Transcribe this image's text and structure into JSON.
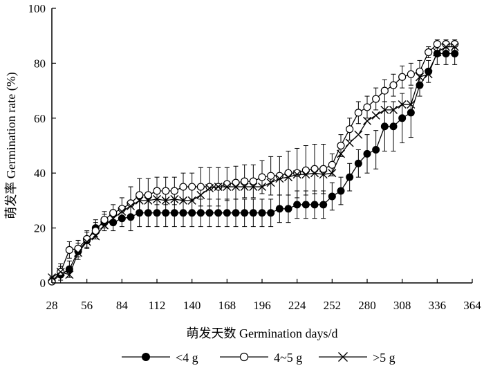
{
  "chart_data": {
    "type": "line",
    "xlabel": "萌发天数 Germination days/d",
    "ylabel": "萌发率 Germination rate (%)",
    "xlim": [
      28,
      364
    ],
    "ylim": [
      0,
      100
    ],
    "xticks": [
      28,
      56,
      84,
      112,
      140,
      168,
      196,
      224,
      252,
      280,
      308,
      336,
      364
    ],
    "yticks": [
      0,
      20,
      40,
      60,
      80,
      100
    ],
    "grid": false,
    "legend_position": "bottom",
    "x": [
      28,
      35,
      42,
      49,
      56,
      63,
      70,
      77,
      84,
      91,
      98,
      105,
      112,
      119,
      126,
      133,
      140,
      147,
      154,
      161,
      168,
      175,
      182,
      189,
      196,
      203,
      210,
      217,
      224,
      231,
      238,
      245,
      252,
      259,
      266,
      273,
      280,
      287,
      294,
      301,
      308,
      315,
      322,
      329,
      336,
      343,
      350
    ],
    "series": [
      {
        "name": "<4 g",
        "marker": "filled-circle",
        "color": "#000000",
        "values": [
          0.5,
          3,
          5,
          11.5,
          15.5,
          20,
          22,
          22,
          23.5,
          24,
          25.5,
          25.5,
          25.5,
          25.5,
          25.5,
          25.5,
          25.5,
          25.5,
          25.5,
          25.5,
          25.5,
          25.5,
          25.5,
          25.5,
          25.5,
          25.5,
          27,
          27,
          28.5,
          28.5,
          28.5,
          28.5,
          31.5,
          33.5,
          38.5,
          43.5,
          47,
          48.5,
          57,
          57,
          60,
          62,
          72,
          77,
          83.5,
          83.5,
          83.5
        ],
        "errors": [
          1.5,
          3,
          3,
          3,
          3,
          3,
          3,
          3,
          3,
          5,
          5,
          5,
          5,
          5,
          5,
          5,
          5,
          5,
          5,
          5,
          5,
          5,
          5,
          5,
          5,
          5,
          5,
          5,
          5,
          5,
          5,
          5,
          5,
          5,
          5,
          5,
          7,
          7,
          9,
          9,
          9,
          9,
          4,
          4,
          4,
          4,
          4
        ]
      },
      {
        "name": "4~5 g",
        "marker": "open-circle",
        "color": "#000000",
        "values": [
          0.5,
          4,
          12,
          12.5,
          16,
          19,
          23,
          25.5,
          27,
          29,
          32,
          32,
          33.5,
          33.5,
          33.5,
          35,
          35,
          35,
          35,
          35,
          36,
          36.5,
          37,
          37,
          38.5,
          39,
          39,
          40,
          40,
          41,
          41.5,
          41.5,
          43,
          50,
          56,
          62,
          64,
          67,
          70,
          72,
          75,
          76,
          77,
          84,
          87,
          87,
          87
        ],
        "errors": [
          1.5,
          3,
          3,
          3,
          3,
          3,
          3,
          3,
          4,
          6,
          6,
          6,
          5,
          5,
          5,
          5,
          5,
          7,
          7,
          7,
          6,
          6,
          6,
          6,
          6,
          7,
          7,
          8,
          9,
          9,
          9,
          9,
          4,
          4,
          4,
          4,
          4,
          4,
          4,
          4,
          4,
          4,
          4,
          2,
          1.5,
          1.5,
          1.5
        ]
      },
      {
        "name": ">5 g",
        "marker": "x",
        "color": "#000000",
        "values": [
          2,
          4,
          3,
          11,
          15,
          17,
          21,
          23.5,
          26,
          28,
          30,
          30,
          30.5,
          30,
          30.5,
          30,
          30,
          32,
          34.5,
          35,
          35,
          35,
          35,
          35,
          35,
          36.5,
          38,
          38.5,
          39.5,
          39.5,
          40,
          39.5,
          40,
          47,
          51,
          54,
          59,
          61,
          63,
          63,
          65,
          65,
          75,
          76,
          84,
          86,
          86
        ]
      }
    ]
  }
}
